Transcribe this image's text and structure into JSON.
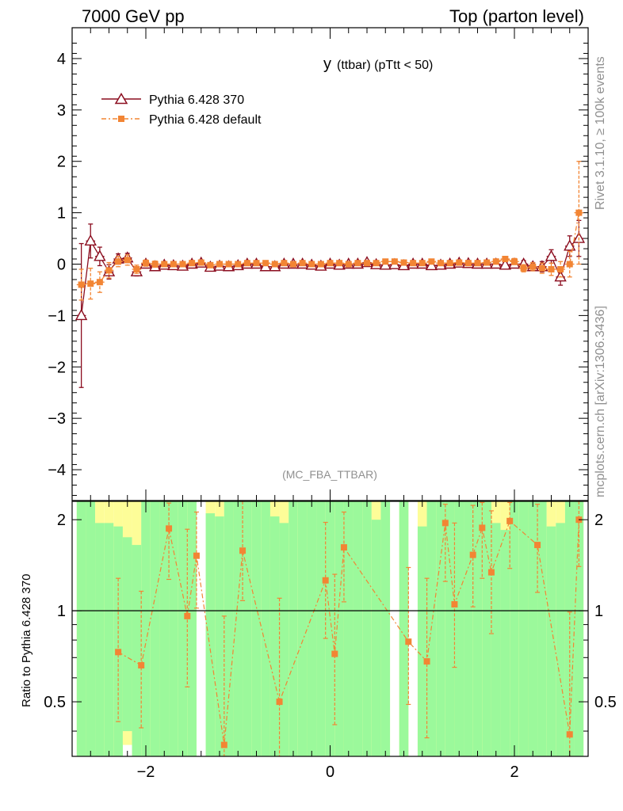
{
  "header": {
    "left": "7000 GeV pp",
    "right": "Top (parton level)"
  },
  "side_labels": {
    "rivet": "Rivet 3.1.10, ≥ 100k events",
    "mcplots": "mcplots.cern.ch [arXiv:1306.3436]"
  },
  "analysis_tag": "(MC_FBA_TTBAR)",
  "chart_data": [
    {
      "type": "line",
      "panel": "main",
      "title": "y (ttbar) (pTtt < 50)",
      "title_main": "y",
      "title_sub": "(ttbar)  (pTtt < 50)",
      "xlim": [
        -2.8,
        2.8
      ],
      "ylim": [
        -4.6,
        4.6
      ],
      "yticks": [
        -4,
        -3,
        -2,
        -1,
        0,
        1,
        2,
        3,
        4
      ],
      "ytick_labels": [
        "−4",
        "−3",
        "−2",
        "−1",
        "0",
        "1",
        "2",
        "3",
        "4"
      ],
      "legend_position": "top-left",
      "series": [
        {
          "name": "Pythia 6.428 370",
          "color": "#8b0d1f",
          "marker": "open-triangle",
          "x": [
            -2.7,
            -2.6,
            -2.5,
            -2.4,
            -2.3,
            -2.2,
            -2.1,
            -2.0,
            -1.9,
            -1.8,
            -1.7,
            -1.6,
            -1.5,
            -1.4,
            -1.3,
            -1.2,
            -1.1,
            -1.0,
            -0.9,
            -0.8,
            -0.7,
            -0.6,
            -0.5,
            -0.4,
            -0.3,
            -0.2,
            -0.1,
            0.0,
            0.1,
            0.2,
            0.3,
            0.4,
            0.5,
            0.6,
            0.7,
            0.8,
            0.9,
            1.0,
            1.1,
            1.2,
            1.3,
            1.4,
            1.5,
            1.6,
            1.7,
            1.8,
            1.9,
            2.0,
            2.1,
            2.2,
            2.3,
            2.4,
            2.5,
            2.6,
            2.7
          ],
          "y": [
            -1.0,
            0.45,
            0.15,
            -0.15,
            0.1,
            0.12,
            -0.15,
            0.0,
            -0.05,
            -0.02,
            -0.03,
            -0.04,
            0.0,
            0.02,
            -0.06,
            -0.04,
            -0.05,
            -0.03,
            0.0,
            0.0,
            -0.05,
            -0.05,
            0.0,
            0.0,
            0.0,
            -0.02,
            -0.04,
            0.0,
            -0.02,
            0.0,
            0.0,
            0.03,
            -0.01,
            -0.02,
            -0.01,
            -0.03,
            0.0,
            0.0,
            -0.03,
            -0.02,
            0.0,
            0.02,
            0.01,
            0.0,
            0.0,
            0.0,
            -0.02,
            0.0,
            0.0,
            -0.05,
            -0.05,
            0.15,
            -0.25,
            0.35,
            0.5
          ],
          "err": [
            1.4,
            0.33,
            0.18,
            0.14,
            0.1,
            0.09,
            0.08,
            0.06,
            0.06,
            0.05,
            0.05,
            0.05,
            0.05,
            0.04,
            0.04,
            0.04,
            0.04,
            0.04,
            0.04,
            0.04,
            0.04,
            0.04,
            0.04,
            0.04,
            0.04,
            0.04,
            0.04,
            0.04,
            0.04,
            0.04,
            0.04,
            0.04,
            0.04,
            0.04,
            0.04,
            0.04,
            0.04,
            0.04,
            0.04,
            0.04,
            0.04,
            0.04,
            0.05,
            0.05,
            0.05,
            0.05,
            0.05,
            0.06,
            0.07,
            0.08,
            0.1,
            0.13,
            0.16,
            0.2,
            0.35
          ]
        },
        {
          "name": "Pythia 6.428 default",
          "color": "#f28534",
          "marker": "filled-square",
          "x": [
            -2.7,
            -2.6,
            -2.5,
            -2.4,
            -2.3,
            -2.2,
            -2.1,
            -2.0,
            -1.9,
            -1.8,
            -1.7,
            -1.6,
            -1.5,
            -1.4,
            -1.3,
            -1.2,
            -1.1,
            -1.0,
            -0.9,
            -0.8,
            -0.7,
            -0.6,
            -0.5,
            -0.4,
            -0.3,
            -0.2,
            -0.1,
            0.0,
            0.1,
            0.2,
            0.3,
            0.4,
            0.5,
            0.6,
            0.7,
            0.8,
            0.9,
            1.0,
            1.1,
            1.2,
            1.3,
            1.4,
            1.5,
            1.6,
            1.7,
            1.8,
            1.9,
            2.0,
            2.1,
            2.2,
            2.3,
            2.4,
            2.5,
            2.6,
            2.7
          ],
          "y": [
            -0.4,
            -0.38,
            -0.35,
            -0.12,
            0.05,
            0.08,
            -0.1,
            0.02,
            0.0,
            0.0,
            0.0,
            0.0,
            0.02,
            0.03,
            -0.02,
            0.0,
            0.0,
            0.0,
            0.02,
            0.02,
            0.02,
            0.0,
            0.02,
            0.0,
            0.02,
            0.0,
            0.0,
            0.02,
            0.02,
            0.0,
            0.02,
            0.02,
            0.02,
            0.05,
            0.05,
            0.03,
            0.02,
            0.02,
            0.05,
            0.02,
            0.02,
            0.03,
            0.02,
            0.02,
            0.03,
            0.05,
            0.1,
            0.05,
            -0.08,
            -0.05,
            -0.08,
            -0.1,
            -0.1,
            0.0,
            1.0
          ],
          "err": [
            0.3,
            0.3,
            0.2,
            0.15,
            0.1,
            0.1,
            0.08,
            0.06,
            0.06,
            0.05,
            0.05,
            0.05,
            0.05,
            0.04,
            0.04,
            0.04,
            0.04,
            0.04,
            0.04,
            0.04,
            0.04,
            0.04,
            0.04,
            0.04,
            0.04,
            0.04,
            0.04,
            0.04,
            0.04,
            0.04,
            0.04,
            0.04,
            0.04,
            0.04,
            0.04,
            0.04,
            0.04,
            0.04,
            0.04,
            0.04,
            0.04,
            0.04,
            0.05,
            0.05,
            0.05,
            0.05,
            0.05,
            0.06,
            0.07,
            0.08,
            0.1,
            0.12,
            0.15,
            0.25,
            1.0
          ]
        }
      ]
    },
    {
      "type": "line",
      "panel": "ratio",
      "ylabel": "Ratio to Pythia 6.428 370",
      "xlim": [
        -2.8,
        2.8
      ],
      "ylim": [
        0.33,
        2.3
      ],
      "xticks": [
        -2,
        0,
        2
      ],
      "xtick_labels": [
        "−2",
        "0",
        "2"
      ],
      "yticks": [
        0.5,
        1,
        2
      ],
      "ytick_labels": [
        "0.5",
        "1",
        "2"
      ],
      "reference_line": 1,
      "bands": {
        "green": "#9bf99b",
        "yellow": "#fdfd98",
        "x": [
          -2.7,
          -2.6,
          -2.5,
          -2.4,
          -2.3,
          -2.2,
          -2.1,
          -2.0,
          -1.9,
          -1.8,
          -1.7,
          -1.6,
          -1.5,
          -1.4,
          -1.3,
          -1.2,
          -1.1,
          -1.0,
          -0.9,
          -0.8,
          -0.7,
          -0.6,
          -0.5,
          -0.4,
          -0.3,
          -0.2,
          -0.1,
          0.0,
          0.1,
          0.2,
          0.3,
          0.4,
          0.5,
          0.6,
          0.7,
          0.8,
          0.9,
          1.0,
          1.1,
          1.2,
          1.3,
          1.4,
          1.5,
          1.6,
          1.7,
          1.8,
          1.9,
          2.0,
          2.1,
          2.2,
          2.3,
          2.4,
          2.5,
          2.6,
          2.7
        ],
        "green_lo": [
          0.33,
          0.33,
          0.33,
          0.33,
          0.33,
          0.4,
          0.33,
          0.33,
          0.33,
          0.33,
          0.33,
          0.33,
          0.33,
          null,
          0.33,
          0.33,
          0.33,
          0.33,
          0.33,
          0.33,
          0.33,
          0.33,
          0.33,
          0.33,
          0.33,
          0.33,
          0.33,
          0.33,
          0.33,
          0.33,
          0.33,
          0.33,
          0.33,
          0.33,
          null,
          0.33,
          null,
          0.33,
          0.33,
          0.33,
          0.33,
          0.33,
          0.33,
          0.33,
          0.33,
          0.33,
          0.33,
          0.33,
          0.33,
          0.33,
          0.33,
          0.33,
          0.33,
          0.33,
          0.33
        ],
        "green_hi": [
          2.3,
          2.3,
          1.95,
          1.95,
          1.9,
          1.75,
          1.65,
          2.3,
          2.3,
          2.3,
          2.3,
          2.3,
          2.3,
          null,
          2.1,
          2.05,
          2.3,
          2.3,
          2.3,
          2.3,
          2.3,
          2.05,
          1.95,
          2.3,
          2.3,
          2.3,
          2.3,
          2.3,
          2.3,
          2.3,
          2.3,
          2.3,
          2.0,
          2.3,
          null,
          2.3,
          null,
          1.9,
          2.3,
          2.3,
          2.3,
          2.3,
          2.3,
          2.3,
          2.3,
          1.95,
          1.85,
          2.3,
          2.3,
          2.3,
          2.3,
          1.9,
          1.95,
          2.3,
          2.3
        ],
        "yellow_hi": [
          2.3,
          2.3,
          2.3,
          2.3,
          2.3,
          2.3,
          2.3,
          2.3,
          2.3,
          2.3,
          2.3,
          2.3,
          2.3,
          null,
          2.3,
          2.3,
          2.3,
          2.3,
          2.3,
          2.3,
          2.3,
          2.3,
          2.3,
          2.3,
          2.3,
          2.3,
          2.3,
          2.3,
          2.3,
          2.3,
          2.3,
          2.3,
          2.3,
          2.3,
          null,
          2.3,
          null,
          2.3,
          2.3,
          2.3,
          2.3,
          2.3,
          2.3,
          2.3,
          2.3,
          2.3,
          2.3,
          2.3,
          2.3,
          2.3,
          2.3,
          2.3,
          2.3,
          2.3,
          2.3
        ],
        "yellow_lo": [
          0.33,
          0.33,
          0.33,
          0.33,
          0.33,
          0.36,
          0.33,
          0.33,
          0.33,
          0.33,
          0.33,
          0.33,
          0.33,
          null,
          0.33,
          0.33,
          0.33,
          0.33,
          0.33,
          0.33,
          0.33,
          0.33,
          0.33,
          0.33,
          0.33,
          0.33,
          0.33,
          0.33,
          0.33,
          0.33,
          0.33,
          0.33,
          0.33,
          0.33,
          null,
          0.33,
          null,
          0.33,
          0.33,
          0.33,
          0.33,
          0.33,
          0.33,
          0.33,
          0.33,
          0.33,
          0.33,
          0.33,
          0.33,
          0.33,
          0.33,
          0.33,
          0.33,
          0.33,
          0.33
        ]
      },
      "series": [
        {
          "name": "Pythia 6.428 default",
          "color": "#f28534",
          "marker": "filled-square",
          "x": [
            -2.3,
            -2.05,
            -1.75,
            -1.55,
            -1.45,
            -1.15,
            -0.95,
            -0.55,
            -0.05,
            0.05,
            0.15,
            0.85,
            1.05,
            1.25,
            1.35,
            1.55,
            1.65,
            1.75,
            1.95,
            2.25,
            2.6,
            2.7
          ],
          "y": [
            0.73,
            0.66,
            1.87,
            0.96,
            1.52,
            0.36,
            1.58,
            0.5,
            1.26,
            0.72,
            1.62,
            0.79,
            0.68,
            1.95,
            1.05,
            1.53,
            1.88,
            1.34,
            1.98,
            1.65,
            0.39,
            2.0
          ],
          "err_lo": [
            0.3,
            0.25,
            0.6,
            0.4,
            0.5,
            0.2,
            0.5,
            0.2,
            0.45,
            0.3,
            0.55,
            0.3,
            0.3,
            0.7,
            0.4,
            0.5,
            0.6,
            0.5,
            0.6,
            0.5,
            0.2,
            0.6
          ],
          "err_hi": [
            0.55,
            0.5,
            0.4,
            0.9,
            0.6,
            0.6,
            0.8,
            0.6,
            0.7,
            0.6,
            0.5,
            0.6,
            0.6,
            0.3,
            0.9,
            0.7,
            0.4,
            0.8,
            0.3,
            0.6,
            0.6,
            0.3
          ]
        }
      ]
    }
  ]
}
